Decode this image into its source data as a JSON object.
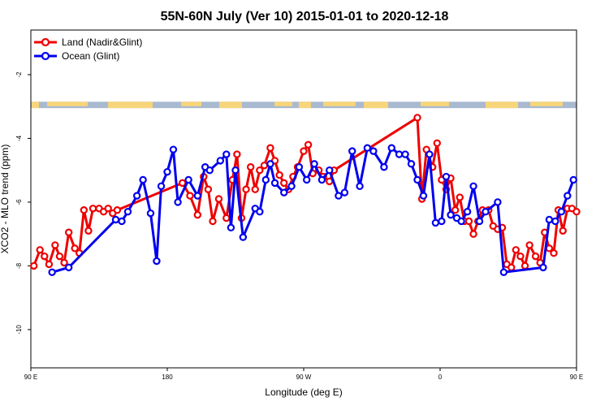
{
  "chart_data": {
    "type": "line",
    "title": "55N-60N July (Ver 10)   2015-01-01 to 2020-12-18",
    "xlabel": "Longitude (deg E)",
    "ylabel": "XCO2 - MLO trend (ppm)",
    "xlim": [
      90,
      450
    ],
    "ylim": [
      -11.2,
      -0.6
    ],
    "x_ticks": [
      {
        "value": 90,
        "label": "90 E"
      },
      {
        "value": 180,
        "label": "180"
      },
      {
        "value": 270,
        "label": "90 W"
      },
      {
        "value": 360,
        "label": "0"
      },
      {
        "value": 450,
        "label": "90 E"
      },
      {
        "value": 540,
        "label": "180"
      }
    ],
    "y_ticks": [
      {
        "value": -2,
        "label": "-2"
      },
      {
        "value": -4,
        "label": "-4"
      },
      {
        "value": -6,
        "label": "-6"
      },
      {
        "value": -8,
        "label": "-8"
      },
      {
        "value": -10,
        "label": "-10"
      }
    ],
    "note_xlim": [
      90,
      540
    ],
    "map_strip_y": [
      -2.85,
      -3.05
    ],
    "legend_position": "top-left",
    "series": [
      {
        "name": "Land (Nadir&Glint)",
        "color": "#ee0000",
        "x": [
          92,
          96,
          99,
          102,
          106,
          109,
          112,
          115,
          119,
          122,
          125,
          128,
          131,
          135,
          138,
          141,
          144,
          147,
          190,
          195,
          200,
          204,
          207,
          210,
          214,
          219,
          223,
          226,
          229,
          232,
          235,
          238,
          241,
          244,
          248,
          251,
          254,
          257,
          260,
          263,
          266,
          270,
          273,
          276,
          280,
          283,
          287,
          290,
          345,
          348,
          351,
          355,
          358,
          361,
          364,
          367,
          370,
          373,
          376,
          379,
          382,
          385,
          388,
          392,
          395,
          398,
          401,
          404,
          407,
          410,
          413,
          416,
          419,
          423,
          426,
          429,
          432,
          435,
          438,
          441,
          444,
          447,
          450
        ],
        "y": [
          -8.0,
          -7.5,
          -7.7,
          -7.95,
          -7.35,
          -7.7,
          -7.9,
          -6.95,
          -7.45,
          -7.6,
          -6.25,
          -6.9,
          -6.2,
          -6.2,
          -6.3,
          -6.2,
          -6.35,
          -6.25,
          -5.4,
          -5.8,
          -6.4,
          -5.2,
          -5.6,
          -6.6,
          -5.9,
          -6.5,
          -5.3,
          -4.5,
          -6.5,
          -5.6,
          -4.9,
          -5.6,
          -5.0,
          -4.85,
          -4.3,
          -4.7,
          -5.15,
          -5.4,
          -5.6,
          -5.2,
          -4.9,
          -4.4,
          -4.2,
          -5.1,
          -5.0,
          -5.2,
          -5.35,
          -5.0,
          -3.35,
          -5.9,
          -4.35,
          -4.9,
          -4.15,
          -5.3,
          -5.6,
          -5.25,
          -6.25,
          -5.85,
          -6.6,
          -6.6,
          -7.0,
          -6.6,
          -6.25,
          -6.25,
          -6.75,
          -6.85,
          -6.8,
          -7.95,
          -8.05,
          -7.5,
          -7.7,
          -8.0,
          -7.35,
          -7.7,
          -7.9,
          -6.95,
          -7.45,
          -7.6,
          -6.25,
          -6.9,
          -6.2,
          -6.2,
          -6.3
        ]
      },
      {
        "name": "Ocean (Glint)",
        "color": "#0000ee",
        "x": [
          104,
          115,
          146,
          150,
          154,
          160,
          164,
          169,
          173,
          176,
          180,
          184,
          187,
          194,
          200,
          205,
          208,
          215,
          219,
          222,
          225,
          230,
          238,
          241,
          245,
          248,
          251,
          257,
          262,
          267,
          272,
          277,
          282,
          287,
          293,
          297,
          302,
          307,
          312,
          316,
          323,
          328,
          333,
          337,
          341,
          345,
          349,
          353,
          357,
          361,
          364,
          367,
          371,
          374,
          378,
          382,
          386,
          390,
          398,
          402,
          428,
          432,
          436,
          440,
          444,
          448,
          452,
          456,
          460,
          464,
          467
        ],
        "y": [
          -8.2,
          -8.05,
          -6.55,
          -6.6,
          -6.3,
          -5.8,
          -5.3,
          -6.35,
          -7.85,
          -5.5,
          -5.05,
          -4.35,
          -6.0,
          -5.3,
          -5.8,
          -4.9,
          -5.0,
          -4.7,
          -4.5,
          -6.8,
          -5.0,
          -7.1,
          -6.2,
          -6.3,
          -5.3,
          -4.8,
          -5.4,
          -5.7,
          -5.5,
          -4.9,
          -5.3,
          -4.8,
          -5.3,
          -5.0,
          -5.8,
          -5.7,
          -4.4,
          -5.5,
          -4.3,
          -4.4,
          -4.9,
          -4.3,
          -4.5,
          -4.5,
          -4.8,
          -5.3,
          -5.8,
          -4.5,
          -6.65,
          -6.6,
          -5.2,
          -6.4,
          -6.5,
          -6.6,
          -6.3,
          -5.5,
          -6.6,
          -6.3,
          -6.0,
          -8.2,
          -8.05,
          -6.55,
          -6.6,
          -6.3,
          -5.8,
          -5.3,
          -6.35,
          -7.85,
          -5.5,
          -5.05,
          -4.35
        ]
      }
    ]
  }
}
